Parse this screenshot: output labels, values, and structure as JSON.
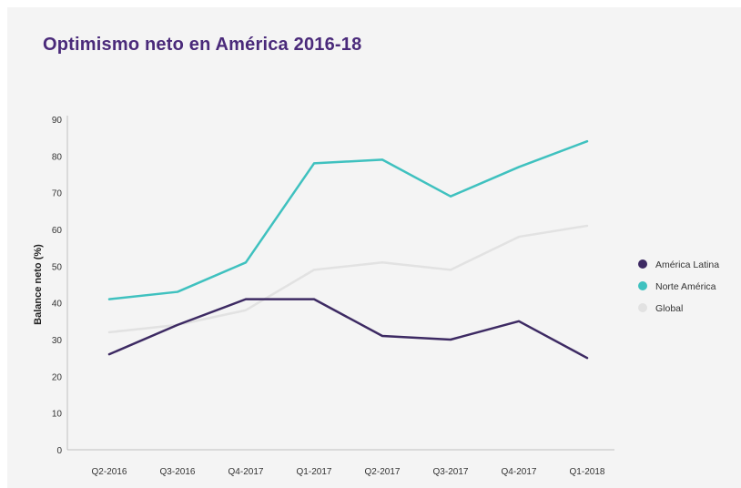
{
  "chart_data": {
    "type": "line",
    "title": "Optimismo neto en América 2016-18",
    "xlabel": "",
    "ylabel": "Balance neto (%)",
    "ylim": [
      0,
      90
    ],
    "yticks": [
      0,
      10,
      20,
      30,
      40,
      50,
      60,
      70,
      80,
      90
    ],
    "categories": [
      "Q2-2016",
      "Q3-2016",
      "Q4-2017",
      "Q1-2017",
      "Q2-2017",
      "Q3-2017",
      "Q4-2017",
      "Q1-2018"
    ],
    "series": [
      {
        "name": "América Latina",
        "color": "#3d2a63",
        "values": [
          26,
          34,
          41,
          41,
          31,
          30,
          35,
          25
        ]
      },
      {
        "name": "Norte América",
        "color": "#3fc1bf",
        "values": [
          41,
          43,
          51,
          78,
          79,
          69,
          77,
          84
        ]
      },
      {
        "name": "Global",
        "color": "#e2e2e2",
        "values": [
          32,
          34,
          38,
          49,
          51,
          49,
          58,
          61
        ]
      }
    ],
    "grid": false,
    "legend_position": "right"
  }
}
